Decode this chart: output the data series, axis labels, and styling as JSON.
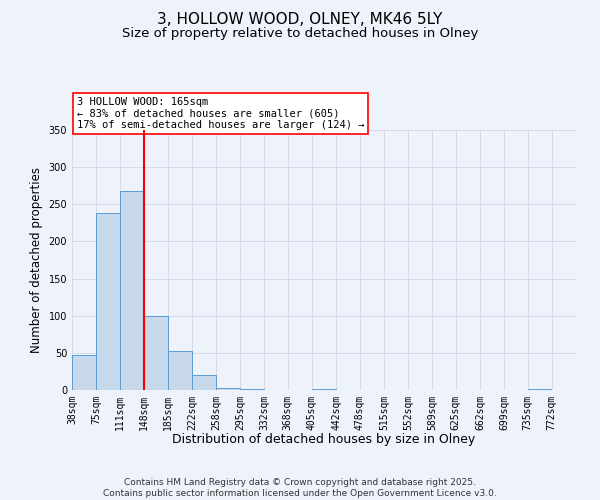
{
  "title": "3, HOLLOW WOOD, OLNEY, MK46 5LY",
  "subtitle": "Size of property relative to detached houses in Olney",
  "xlabel": "Distribution of detached houses by size in Olney",
  "ylabel": "Number of detached properties",
  "property_size": 165,
  "property_line_x": 148,
  "annotation_text": "3 HOLLOW WOOD: 165sqm\n← 83% of detached houses are smaller (605)\n17% of semi-detached houses are larger (124) →",
  "bins": [
    38,
    75,
    111,
    148,
    185,
    222,
    258,
    295,
    332,
    368,
    405,
    442,
    478,
    515,
    552,
    589,
    625,
    662,
    699,
    735,
    772
  ],
  "counts": [
    47,
    238,
    268,
    100,
    53,
    20,
    3,
    1,
    0,
    0,
    1,
    0,
    0,
    0,
    0,
    0,
    0,
    0,
    0,
    1
  ],
  "bar_color": "#c9d9ec",
  "bar_edge_color": "#5b9bd5",
  "vline_color": "red",
  "annotation_box_color": "red",
  "annotation_box_fill": "white",
  "grid_color": "#d0d8e8",
  "background_color": "#eef2fb",
  "footer": "Contains HM Land Registry data © Crown copyright and database right 2025.\nContains public sector information licensed under the Open Government Licence v3.0.",
  "ylim": [
    0,
    350
  ],
  "yticks": [
    0,
    50,
    100,
    150,
    200,
    250,
    300,
    350
  ],
  "title_fontsize": 11,
  "subtitle_fontsize": 9.5,
  "xlabel_fontsize": 9,
  "ylabel_fontsize": 8.5,
  "tick_fontsize": 7,
  "footer_fontsize": 6.5,
  "annotation_fontsize": 7.5
}
